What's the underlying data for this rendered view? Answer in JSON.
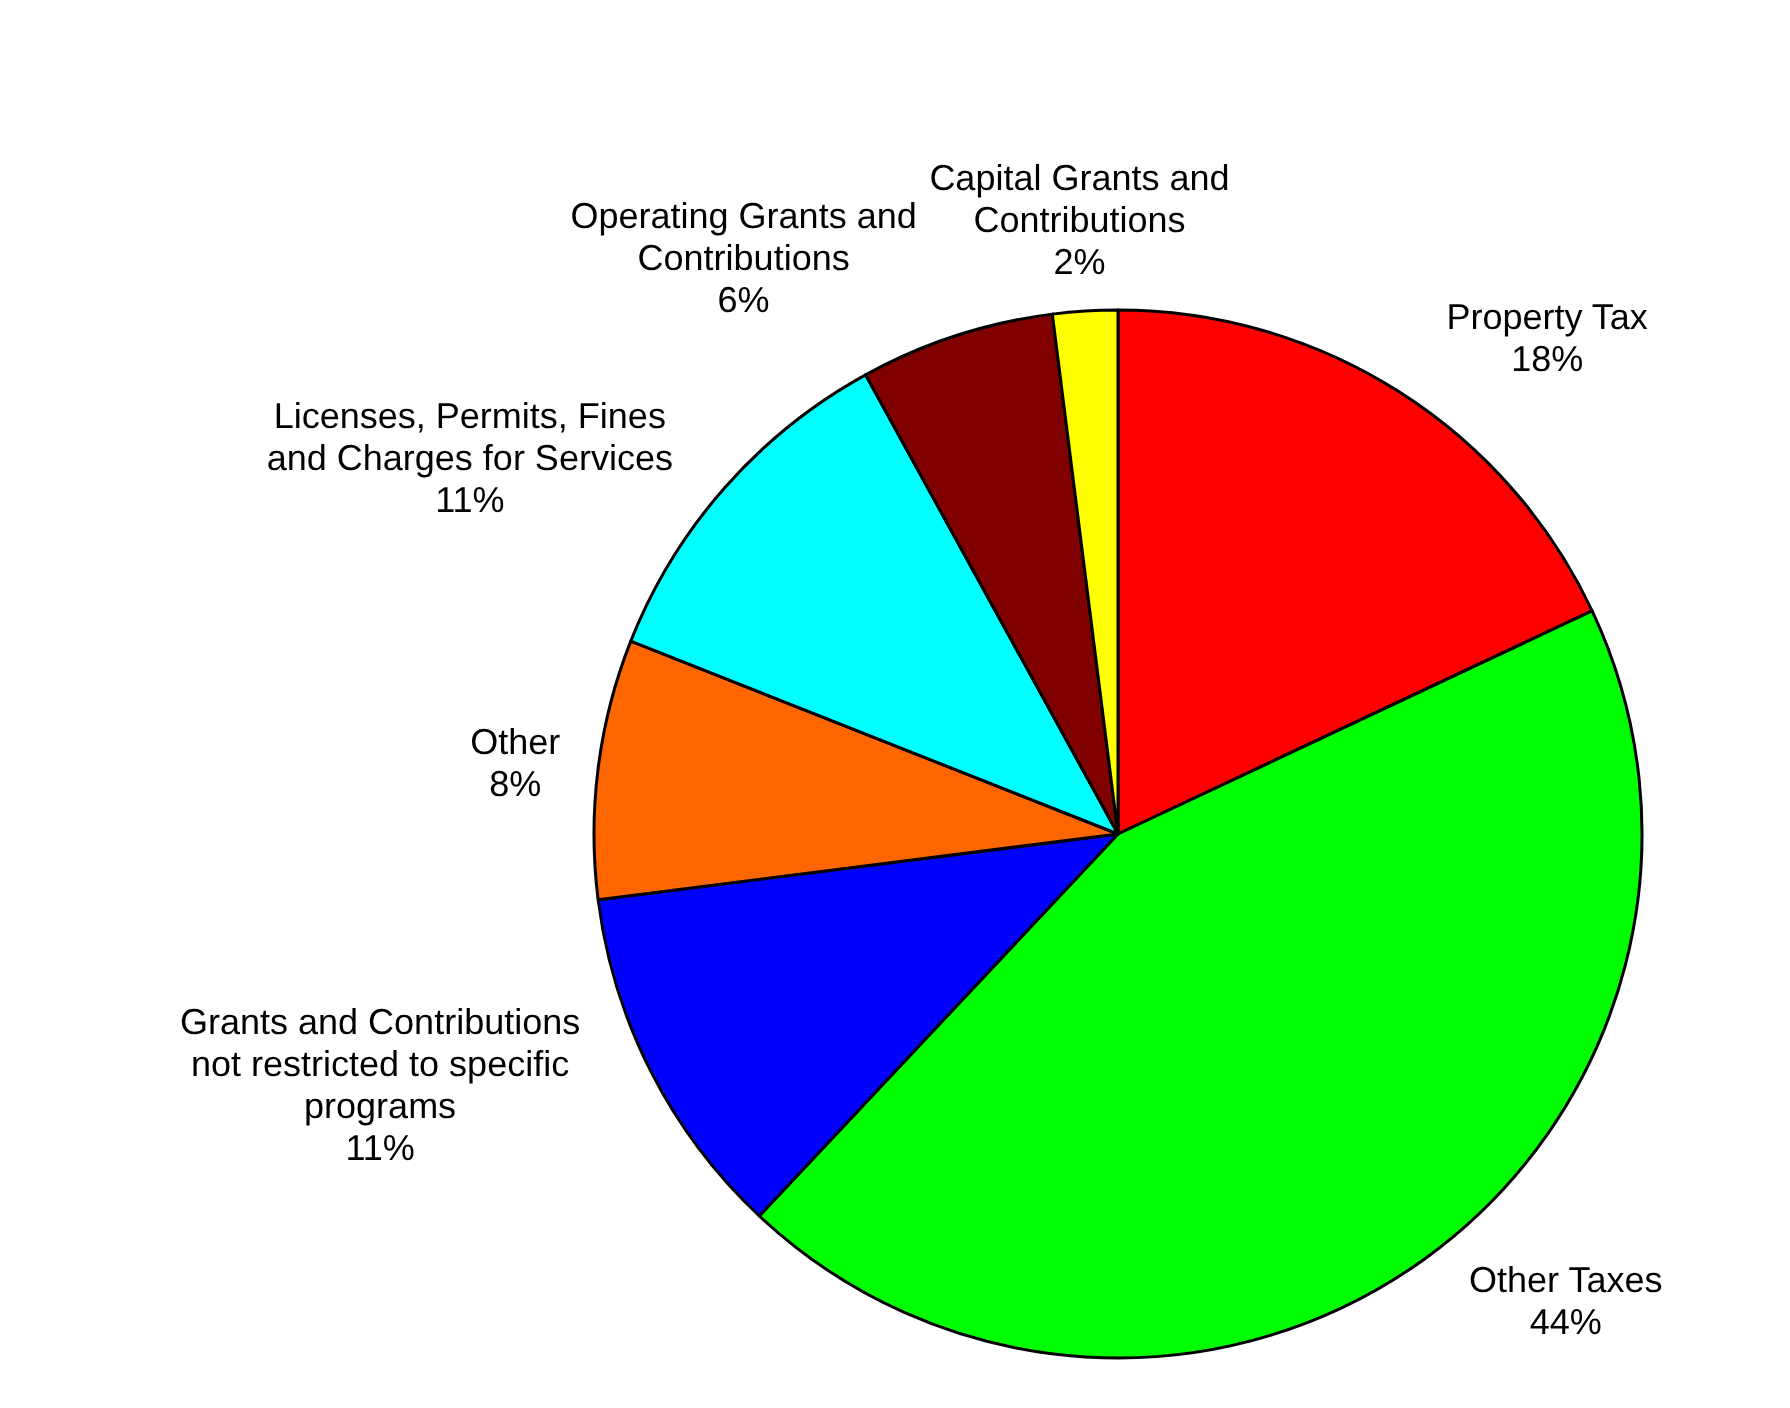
{
  "chart_data": {
    "type": "pie",
    "categories": [
      "Property Tax",
      "Other Taxes",
      "Grants and Contributions not restricted to specific programs",
      "Other",
      "Licenses, Permits, Fines and Charges for Services",
      "Operating Grants and Contributions",
      "Capital Grants and Contributions"
    ],
    "values": [
      18,
      44,
      11,
      8,
      11,
      6,
      2
    ],
    "colors": [
      "#ff0000",
      "#00ff00",
      "#0000ff",
      "#ff6600",
      "#00ffff",
      "#800000",
      "#ffff00"
    ],
    "value_labels": [
      "18%",
      "44%",
      "11%",
      "8%",
      "11%",
      "6%",
      "2%"
    ]
  }
}
